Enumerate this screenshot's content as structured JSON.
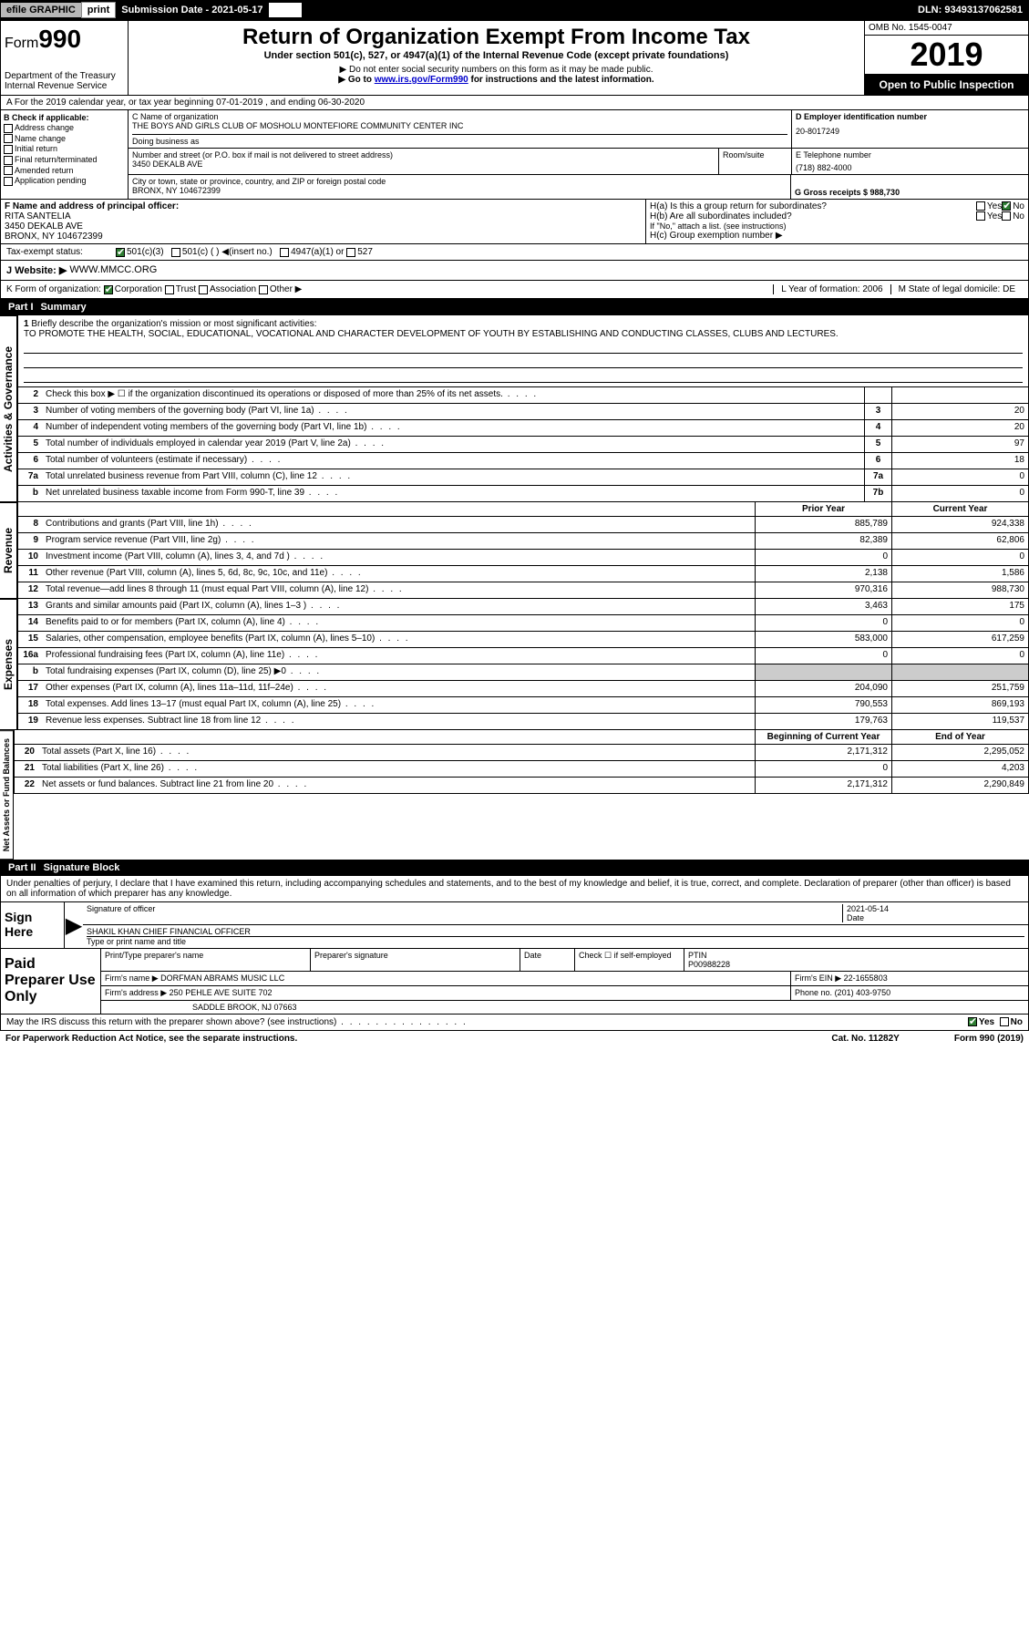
{
  "topbar": {
    "efile": "efile GRAPHIC",
    "print": "print",
    "sub_label": "Submission Date - 2021-05-17",
    "dln": "DLN: 93493137062581"
  },
  "header": {
    "form_label": "Form",
    "form_num": "990",
    "dept": "Department of the Treasury",
    "irs": "Internal Revenue Service",
    "title": "Return of Organization Exempt From Income Tax",
    "subtitle": "Under section 501(c), 527, or 4947(a)(1) of the Internal Revenue Code (except private foundations)",
    "note1": "▶ Do not enter social security numbers on this form as it may be made public.",
    "note2_pre": "▶ Go to ",
    "note2_link": "www.irs.gov/Form990",
    "note2_post": " for instructions and the latest information.",
    "omb": "OMB No. 1545-0047",
    "year": "2019",
    "inspection": "Open to Public Inspection"
  },
  "row_a": "A For the 2019 calendar year, or tax year beginning 07-01-2019    , and ending 06-30-2020",
  "col_b": {
    "header": "B Check if applicable:",
    "opts": [
      "Address change",
      "Name change",
      "Initial return",
      "Final return/terminated",
      "Amended return",
      "Application pending"
    ]
  },
  "org": {
    "name_label": "C Name of organization",
    "name": "THE BOYS AND GIRLS CLUB OF MOSHOLU MONTEFIORE COMMUNITY CENTER INC",
    "dba_label": "Doing business as",
    "dba": "",
    "addr_label": "Number and street (or P.O. box if mail is not delivered to street address)",
    "addr": "3450 DEKALB AVE",
    "room_label": "Room/suite",
    "city_label": "City or town, state or province, country, and ZIP or foreign postal code",
    "city": "BRONX, NY  104672399",
    "ein_label": "D Employer identification number",
    "ein": "20-8017249",
    "phone_label": "E Telephone number",
    "phone": "(718) 882-4000",
    "gross_label": "G Gross receipts $ 988,730"
  },
  "officer": {
    "f_label": "F  Name and address of principal officer:",
    "name": "RITA SANTELIA",
    "addr": "3450 DEKALB AVE",
    "city": "BRONX, NY  104672399",
    "ha": "H(a)  Is this a group return for subordinates?",
    "hb": "H(b)  Are all subordinates included?",
    "hb_note": "If \"No,\" attach a list. (see instructions)",
    "hc": "H(c)  Group exemption number ▶",
    "yes": "Yes",
    "no": "No"
  },
  "tax_status": {
    "label": "Tax-exempt status:",
    "opt1": "501(c)(3)",
    "opt2": "501(c) (  ) ◀(insert no.)",
    "opt3": "4947(a)(1) or",
    "opt4": "527"
  },
  "website": {
    "label": "J Website: ▶",
    "value": "WWW.MMCC.ORG"
  },
  "klm": {
    "k": "K Form of organization:",
    "k_opts": [
      "Corporation",
      "Trust",
      "Association",
      "Other ▶"
    ],
    "l": "L Year of formation: 2006",
    "m": "M State of legal domicile: DE"
  },
  "part1": {
    "label": "Part I",
    "title": "Summary"
  },
  "mission": {
    "num": "1",
    "label": "Briefly describe the organization's mission or most significant activities:",
    "text": "TO PROMOTE THE HEALTH, SOCIAL, EDUCATIONAL, VOCATIONAL AND CHARACTER DEVELOPMENT OF YOUTH BY ESTABLISHING AND CONDUCTING CLASSES, CLUBS AND LECTURES."
  },
  "vtabs": {
    "gov": "Activities & Governance",
    "rev": "Revenue",
    "exp": "Expenses",
    "net": "Net Assets or Fund Balances"
  },
  "gov_lines": [
    {
      "n": "2",
      "t": "Check this box ▶ ☐  if the organization discontinued its operations or disposed of more than 25% of its net assets.",
      "b": "",
      "v": ""
    },
    {
      "n": "3",
      "t": "Number of voting members of the governing body (Part VI, line 1a)",
      "b": "3",
      "v": "20"
    },
    {
      "n": "4",
      "t": "Number of independent voting members of the governing body (Part VI, line 1b)",
      "b": "4",
      "v": "20"
    },
    {
      "n": "5",
      "t": "Total number of individuals employed in calendar year 2019 (Part V, line 2a)",
      "b": "5",
      "v": "97"
    },
    {
      "n": "6",
      "t": "Total number of volunteers (estimate if necessary)",
      "b": "6",
      "v": "18"
    },
    {
      "n": "7a",
      "t": "Total unrelated business revenue from Part VIII, column (C), line 12",
      "b": "7a",
      "v": "0"
    },
    {
      "n": "b",
      "t": "Net unrelated business taxable income from Form 990-T, line 39",
      "b": "7b",
      "v": "0"
    }
  ],
  "col_headers": {
    "prior": "Prior Year",
    "current": "Current Year"
  },
  "rev_lines": [
    {
      "n": "8",
      "t": "Contributions and grants (Part VIII, line 1h)",
      "p": "885,789",
      "c": "924,338"
    },
    {
      "n": "9",
      "t": "Program service revenue (Part VIII, line 2g)",
      "p": "82,389",
      "c": "62,806"
    },
    {
      "n": "10",
      "t": "Investment income (Part VIII, column (A), lines 3, 4, and 7d )",
      "p": "0",
      "c": "0"
    },
    {
      "n": "11",
      "t": "Other revenue (Part VIII, column (A), lines 5, 6d, 8c, 9c, 10c, and 11e)",
      "p": "2,138",
      "c": "1,586"
    },
    {
      "n": "12",
      "t": "Total revenue—add lines 8 through 11 (must equal Part VIII, column (A), line 12)",
      "p": "970,316",
      "c": "988,730"
    }
  ],
  "exp_lines": [
    {
      "n": "13",
      "t": "Grants and similar amounts paid (Part IX, column (A), lines 1–3 )",
      "p": "3,463",
      "c": "175"
    },
    {
      "n": "14",
      "t": "Benefits paid to or for members (Part IX, column (A), line 4)",
      "p": "0",
      "c": "0"
    },
    {
      "n": "15",
      "t": "Salaries, other compensation, employee benefits (Part IX, column (A), lines 5–10)",
      "p": "583,000",
      "c": "617,259"
    },
    {
      "n": "16a",
      "t": "Professional fundraising fees (Part IX, column (A), line 11e)",
      "p": "0",
      "c": "0"
    },
    {
      "n": "b",
      "t": "Total fundraising expenses (Part IX, column (D), line 25) ▶0",
      "p": "",
      "c": "",
      "shaded": true
    },
    {
      "n": "17",
      "t": "Other expenses (Part IX, column (A), lines 11a–11d, 11f–24e)",
      "p": "204,090",
      "c": "251,759"
    },
    {
      "n": "18",
      "t": "Total expenses. Add lines 13–17 (must equal Part IX, column (A), line 25)",
      "p": "790,553",
      "c": "869,193"
    },
    {
      "n": "19",
      "t": "Revenue less expenses. Subtract line 18 from line 12",
      "p": "179,763",
      "c": "119,537"
    }
  ],
  "net_headers": {
    "begin": "Beginning of Current Year",
    "end": "End of Year"
  },
  "net_lines": [
    {
      "n": "20",
      "t": "Total assets (Part X, line 16)",
      "p": "2,171,312",
      "c": "2,295,052"
    },
    {
      "n": "21",
      "t": "Total liabilities (Part X, line 26)",
      "p": "0",
      "c": "4,203"
    },
    {
      "n": "22",
      "t": "Net assets or fund balances. Subtract line 21 from line 20",
      "p": "2,171,312",
      "c": "2,290,849"
    }
  ],
  "part2": {
    "label": "Part II",
    "title": "Signature Block"
  },
  "sig": {
    "penalty": "Under penalties of perjury, I declare that I have examined this return, including accompanying schedules and statements, and to the best of my knowledge and belief, it is true, correct, and complete. Declaration of preparer (other than officer) is based on all information of which preparer has any knowledge.",
    "sign_here": "Sign Here",
    "sig_officer": "Signature of officer",
    "date_label": "Date",
    "date": "2021-05-14",
    "name_title": "SHAKIL KHAN  CHIEF FINANCIAL OFFICER",
    "type_label": "Type or print name and title"
  },
  "prep": {
    "label": "Paid Preparer Use Only",
    "h1": "Print/Type preparer's name",
    "h2": "Preparer's signature",
    "h3": "Date",
    "h4_pre": "Check ☐ if self-employed",
    "h5": "PTIN",
    "ptin": "P00988228",
    "firm_label": "Firm's name    ▶",
    "firm": "DORFMAN ABRAMS MUSIC LLC",
    "ein_label": "Firm's EIN ▶",
    "ein": "22-1655803",
    "addr_label": "Firm's address ▶",
    "addr1": "250 PEHLE AVE SUITE 702",
    "addr2": "SADDLE BROOK, NJ  07663",
    "phone_label": "Phone no.",
    "phone": "(201) 403-9750"
  },
  "footer": {
    "discuss": "May the IRS discuss this return with the preparer shown above? (see instructions)",
    "yes": "Yes",
    "no": "No",
    "paperwork": "For Paperwork Reduction Act Notice, see the separate instructions.",
    "cat": "Cat. No. 11282Y",
    "form": "Form 990 (2019)"
  }
}
